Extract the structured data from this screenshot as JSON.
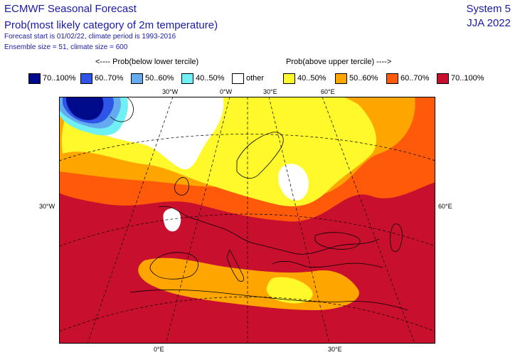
{
  "header": {
    "title_line1": "ECMWF Seasonal Forecast",
    "title_line2": "Prob(most likely category of 2m temperature)",
    "forecast_info": "Forecast start is 01/02/22, climate period is 1993-2016",
    "ensemble_info": "Ensemble size = 51, climate size = 600",
    "system": "System 5",
    "season": "JJA 2022"
  },
  "legend": {
    "below_caption": "<---- Prob(below lower tercile)",
    "above_caption": "Prob(above upper tercile) ---->",
    "items": [
      {
        "label": "70..100%",
        "color": "#000b8c"
      },
      {
        "label": "60..70%",
        "color": "#2f55e8"
      },
      {
        "label": "50..60%",
        "color": "#63aaee"
      },
      {
        "label": "40..50%",
        "color": "#6ff0f4"
      },
      {
        "label": "other",
        "color": "#ffffff"
      },
      {
        "label": "40..50%",
        "color": "#fff82a"
      },
      {
        "label": "50..60%",
        "color": "#ffa500"
      },
      {
        "label": "60..70%",
        "color": "#ff5a0a"
      },
      {
        "label": "70..100%",
        "color": "#c8102e"
      }
    ]
  },
  "map": {
    "projection": "polar stereographic",
    "region": "Europe / North Atlantic / Mediterranean",
    "graticule_labels": {
      "top_30w": "30°W",
      "top_0": "0°W",
      "top_30e": "30°E",
      "top_60e": "60°E",
      "left": "30°W",
      "right": "60°E",
      "bottom_0": "0°E",
      "bottom_30e": "30°E"
    }
  }
}
